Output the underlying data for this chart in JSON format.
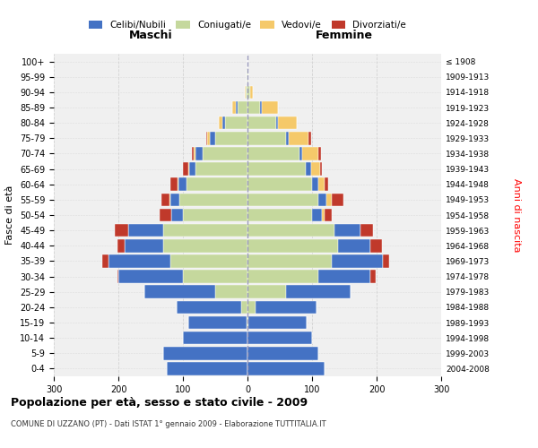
{
  "age_groups": [
    "0-4",
    "5-9",
    "10-14",
    "15-19",
    "20-24",
    "25-29",
    "30-34",
    "35-39",
    "40-44",
    "45-49",
    "50-54",
    "55-59",
    "60-64",
    "65-69",
    "70-74",
    "75-79",
    "80-84",
    "85-89",
    "90-94",
    "95-99",
    "100+"
  ],
  "birth_years": [
    "2004-2008",
    "1999-2003",
    "1994-1998",
    "1989-1993",
    "1984-1988",
    "1979-1983",
    "1974-1978",
    "1969-1973",
    "1964-1968",
    "1959-1963",
    "1954-1958",
    "1949-1953",
    "1944-1948",
    "1939-1943",
    "1934-1938",
    "1929-1933",
    "1924-1928",
    "1919-1923",
    "1914-1918",
    "1909-1913",
    "≤ 1908"
  ],
  "maschi": {
    "coniugati": [
      0,
      0,
      0,
      2,
      10,
      50,
      100,
      120,
      130,
      130,
      100,
      105,
      95,
      80,
      70,
      50,
      35,
      15,
      3,
      1,
      0
    ],
    "celibi": [
      125,
      130,
      100,
      90,
      100,
      110,
      100,
      95,
      60,
      55,
      18,
      14,
      12,
      10,
      10,
      8,
      4,
      3,
      0,
      0,
      0
    ],
    "vedovi": [
      0,
      0,
      0,
      0,
      0,
      0,
      0,
      0,
      0,
      0,
      0,
      2,
      2,
      2,
      4,
      4,
      5,
      5,
      1,
      0,
      0
    ],
    "divorziati": [
      0,
      0,
      0,
      0,
      0,
      0,
      2,
      10,
      12,
      20,
      18,
      12,
      10,
      8,
      2,
      2,
      0,
      0,
      0,
      0,
      0
    ]
  },
  "femmine": {
    "coniugate": [
      0,
      0,
      0,
      2,
      12,
      60,
      110,
      130,
      140,
      135,
      100,
      110,
      100,
      90,
      80,
      60,
      45,
      20,
      4,
      1,
      0
    ],
    "nubili": [
      120,
      110,
      100,
      90,
      95,
      100,
      80,
      80,
      50,
      40,
      15,
      12,
      10,
      8,
      5,
      4,
      2,
      2,
      0,
      0,
      0
    ],
    "vedove": [
      0,
      0,
      0,
      0,
      0,
      0,
      0,
      0,
      0,
      0,
      5,
      8,
      10,
      15,
      25,
      30,
      30,
      25,
      5,
      0,
      0
    ],
    "divorziate": [
      0,
      0,
      0,
      0,
      0,
      0,
      8,
      10,
      18,
      20,
      10,
      18,
      5,
      2,
      4,
      4,
      0,
      0,
      0,
      0,
      0
    ]
  },
  "colors": {
    "celibi": "#4472C4",
    "coniugati": "#C5D89D",
    "vedovi": "#F5C96A",
    "divorziati": "#C0392B"
  },
  "xlim": 300,
  "title": "Popolazione per età, sesso e stato civile - 2009",
  "subtitle": "COMUNE DI UZZANO (PT) - Dati ISTAT 1° gennaio 2009 - Elaborazione TUTTITALIA.IT",
  "xlabel_left": "Maschi",
  "xlabel_right": "Femmine",
  "ylabel_left": "Fasce di età",
  "ylabel_right": "Anni di nascita",
  "bg_color": "#FFFFFF",
  "plot_bg_color": "#F0F0F0",
  "grid_color": "#CCCCCC"
}
